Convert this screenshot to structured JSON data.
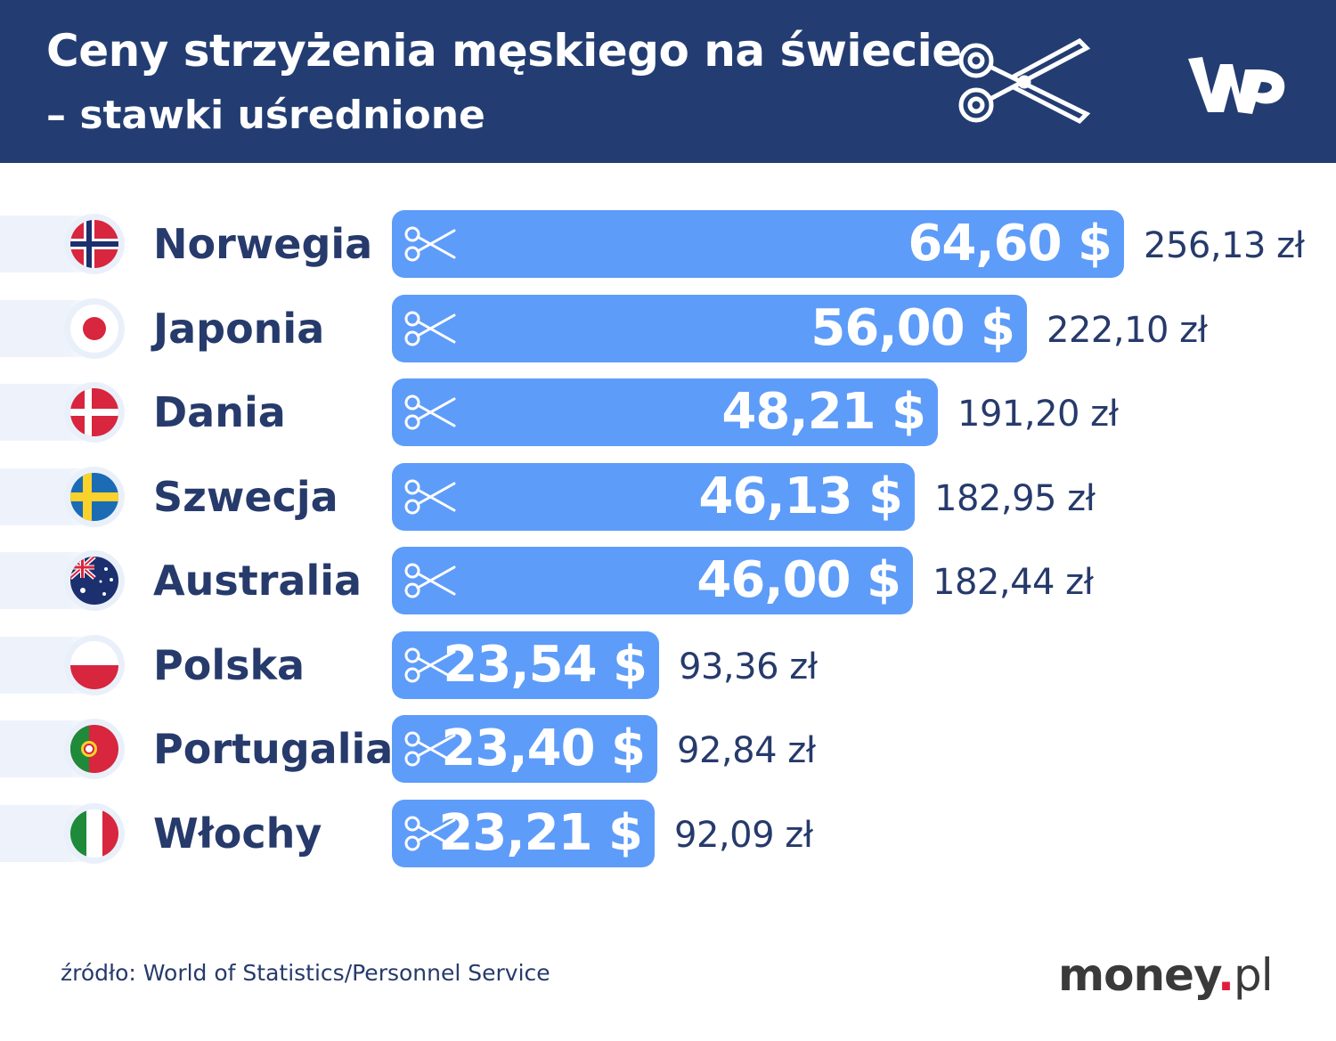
{
  "header": {
    "title": "Ceny strzyżenia męskiego na świecie",
    "subtitle": "– stawki uśrednione",
    "scissors_icon": "scissors-icon",
    "logo_icon": "wp-logo-icon"
  },
  "colors": {
    "header_bg": "#233d72",
    "bar": "#5e9cf9",
    "text": "#263a6b"
  },
  "chart_data": {
    "type": "bar",
    "orientation": "horizontal",
    "title": "Ceny strzyżenia męskiego na świecie",
    "subtitle": "– stawki uśrednione",
    "categories": [
      "Norwegia",
      "Japonia",
      "Dania",
      "Szwecja",
      "Australia",
      "Polska",
      "Portugalia",
      "Włochy"
    ],
    "series": [
      {
        "name": "USD",
        "values": [
          64.6,
          56.0,
          48.21,
          46.13,
          46.0,
          23.54,
          23.4,
          23.21
        ]
      },
      {
        "name": "PLN",
        "values": [
          256.13,
          222.1,
          191.2,
          182.95,
          182.44,
          93.36,
          92.84,
          92.09
        ]
      }
    ],
    "usd_labels": [
      "64,60 $",
      "56,00 $",
      "48,21 $",
      "46,13 $",
      "46,00 $",
      "23,54 $",
      "23,40 $",
      "23,21 $"
    ],
    "pln_labels": [
      "256,13 zł",
      "222,10 zł",
      "191,20 zł",
      "182,95 zł",
      "182,44 zł",
      "93,36 zł",
      "92,84 zł",
      "92,09 zł"
    ],
    "flags": [
      "norway",
      "japan",
      "denmark",
      "sweden",
      "australia",
      "poland",
      "portugal",
      "italy"
    ],
    "xlim": [
      0,
      64.6
    ],
    "grid": false,
    "legend": "none"
  },
  "footer": {
    "source": "źródło: World of Statistics/Personnel Service",
    "brand_main": "money",
    "brand_dot": ".",
    "brand_tld": "pl"
  }
}
